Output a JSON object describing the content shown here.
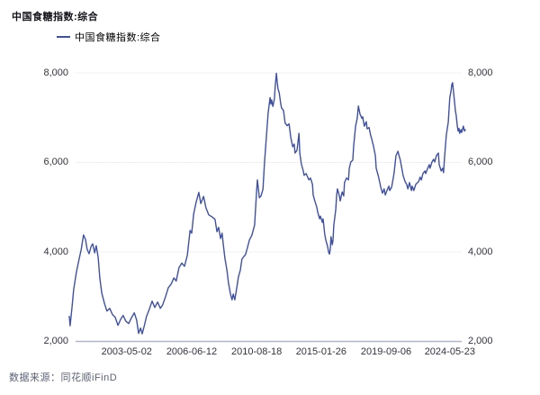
{
  "header": {
    "title": "中国食糖指数:综合"
  },
  "legend": {
    "label": "中国食糖指数:综合",
    "color": "#3f51a0"
  },
  "footer": {
    "source": "数据来源：同花顺iFinD"
  },
  "chart_data": {
    "type": "line",
    "title": "中国食糖指数:综合",
    "series_name": "中国食糖指数:综合",
    "line_color": "#3f51a0",
    "grid": "horizontal",
    "grid_color": "#eef0f6",
    "axis_color": "#b0b6cb",
    "ylim": [
      2000,
      8000
    ],
    "y_axis_sides": [
      "left",
      "right"
    ],
    "y_ticks": [
      {
        "label": "2,000",
        "value": 2000
      },
      {
        "label": "4,000",
        "value": 4000
      },
      {
        "label": "6,000",
        "value": 6000
      },
      {
        "label": "8,000",
        "value": 8000
      }
    ],
    "x_ticks": [
      {
        "label": "2003-05-02",
        "f": 0.145
      },
      {
        "label": "2006-06-12",
        "f": 0.309
      },
      {
        "label": "2010-08-18",
        "f": 0.473
      },
      {
        "label": "2015-01-26",
        "f": 0.636
      },
      {
        "label": "2019-09-06",
        "f": 0.8
      },
      {
        "label": "2024-05-23",
        "f": 0.961
      }
    ],
    "points": [
      [
        0.0,
        2560
      ],
      [
        0.002,
        2350
      ],
      [
        0.007,
        2780
      ],
      [
        0.011,
        3150
      ],
      [
        0.018,
        3550
      ],
      [
        0.025,
        3850
      ],
      [
        0.03,
        4050
      ],
      [
        0.036,
        4380
      ],
      [
        0.041,
        4280
      ],
      [
        0.045,
        4060
      ],
      [
        0.05,
        3960
      ],
      [
        0.055,
        4120
      ],
      [
        0.059,
        4180
      ],
      [
        0.064,
        3980
      ],
      [
        0.068,
        4140
      ],
      [
        0.073,
        3880
      ],
      [
        0.077,
        3420
      ],
      [
        0.082,
        3080
      ],
      [
        0.089,
        2840
      ],
      [
        0.095,
        2680
      ],
      [
        0.102,
        2740
      ],
      [
        0.109,
        2600
      ],
      [
        0.116,
        2540
      ],
      [
        0.123,
        2360
      ],
      [
        0.13,
        2500
      ],
      [
        0.136,
        2580
      ],
      [
        0.143,
        2450
      ],
      [
        0.15,
        2400
      ],
      [
        0.157,
        2530
      ],
      [
        0.164,
        2640
      ],
      [
        0.17,
        2480
      ],
      [
        0.175,
        2180
      ],
      [
        0.18,
        2300
      ],
      [
        0.184,
        2170
      ],
      [
        0.189,
        2340
      ],
      [
        0.195,
        2560
      ],
      [
        0.202,
        2720
      ],
      [
        0.209,
        2900
      ],
      [
        0.216,
        2760
      ],
      [
        0.223,
        2880
      ],
      [
        0.23,
        2740
      ],
      [
        0.236,
        2820
      ],
      [
        0.243,
        3000
      ],
      [
        0.25,
        3200
      ],
      [
        0.257,
        3280
      ],
      [
        0.264,
        3420
      ],
      [
        0.27,
        3350
      ],
      [
        0.277,
        3650
      ],
      [
        0.284,
        3750
      ],
      [
        0.291,
        3680
      ],
      [
        0.298,
        3920
      ],
      [
        0.305,
        4480
      ],
      [
        0.309,
        4420
      ],
      [
        0.314,
        4850
      ],
      [
        0.32,
        5100
      ],
      [
        0.327,
        5330
      ],
      [
        0.332,
        5080
      ],
      [
        0.339,
        5240
      ],
      [
        0.345,
        4990
      ],
      [
        0.352,
        4830
      ],
      [
        0.361,
        4780
      ],
      [
        0.368,
        4730
      ],
      [
        0.373,
        4450
      ],
      [
        0.377,
        4550
      ],
      [
        0.382,
        4300
      ],
      [
        0.386,
        4420
      ],
      [
        0.389,
        4150
      ],
      [
        0.393,
        3860
      ],
      [
        0.398,
        3600
      ],
      [
        0.402,
        3300
      ],
      [
        0.407,
        3060
      ],
      [
        0.411,
        2930
      ],
      [
        0.414,
        3060
      ],
      [
        0.418,
        2930
      ],
      [
        0.423,
        3200
      ],
      [
        0.427,
        3440
      ],
      [
        0.432,
        3600
      ],
      [
        0.436,
        3840
      ],
      [
        0.441,
        3900
      ],
      [
        0.445,
        3940
      ],
      [
        0.45,
        4100
      ],
      [
        0.455,
        4270
      ],
      [
        0.461,
        4370
      ],
      [
        0.468,
        4600
      ],
      [
        0.473,
        5350
      ],
      [
        0.475,
        5610
      ],
      [
        0.48,
        5210
      ],
      [
        0.484,
        5250
      ],
      [
        0.489,
        5400
      ],
      [
        0.493,
        6000
      ],
      [
        0.498,
        6600
      ],
      [
        0.502,
        7100
      ],
      [
        0.507,
        7450
      ],
      [
        0.509,
        7300
      ],
      [
        0.511,
        7400
      ],
      [
        0.514,
        7250
      ],
      [
        0.518,
        7420
      ],
      [
        0.52,
        7700
      ],
      [
        0.523,
        7990
      ],
      [
        0.525,
        7800
      ],
      [
        0.527,
        7640
      ],
      [
        0.53,
        7560
      ],
      [
        0.534,
        7300
      ],
      [
        0.536,
        7220
      ],
      [
        0.541,
        7160
      ],
      [
        0.545,
        6880
      ],
      [
        0.55,
        6820
      ],
      [
        0.555,
        6860
      ],
      [
        0.559,
        6570
      ],
      [
        0.564,
        6350
      ],
      [
        0.568,
        6410
      ],
      [
        0.57,
        6210
      ],
      [
        0.575,
        6270
      ],
      [
        0.58,
        6650
      ],
      [
        0.582,
        6210
      ],
      [
        0.586,
        5970
      ],
      [
        0.591,
        5810
      ],
      [
        0.593,
        5710
      ],
      [
        0.598,
        5750
      ],
      [
        0.605,
        5610
      ],
      [
        0.609,
        5650
      ],
      [
        0.614,
        5510
      ],
      [
        0.616,
        5270
      ],
      [
        0.62,
        5140
      ],
      [
        0.625,
        5000
      ],
      [
        0.627,
        4900
      ],
      [
        0.632,
        4740
      ],
      [
        0.634,
        4800
      ],
      [
        0.639,
        4660
      ],
      [
        0.641,
        4740
      ],
      [
        0.645,
        4400
      ],
      [
        0.648,
        4260
      ],
      [
        0.652,
        4130
      ],
      [
        0.655,
        3990
      ],
      [
        0.657,
        3950
      ],
      [
        0.659,
        4070
      ],
      [
        0.661,
        4340
      ],
      [
        0.664,
        4160
      ],
      [
        0.666,
        4260
      ],
      [
        0.668,
        4600
      ],
      [
        0.67,
        4740
      ],
      [
        0.673,
        4950
      ],
      [
        0.675,
        5250
      ],
      [
        0.677,
        5410
      ],
      [
        0.682,
        5250
      ],
      [
        0.684,
        5140
      ],
      [
        0.689,
        5340
      ],
      [
        0.693,
        5250
      ],
      [
        0.695,
        5550
      ],
      [
        0.7,
        5650
      ],
      [
        0.705,
        5610
      ],
      [
        0.707,
        5870
      ],
      [
        0.711,
        6010
      ],
      [
        0.716,
        6050
      ],
      [
        0.718,
        6350
      ],
      [
        0.723,
        6810
      ],
      [
        0.727,
        6980
      ],
      [
        0.73,
        7260
      ],
      [
        0.734,
        7080
      ],
      [
        0.739,
        6980
      ],
      [
        0.741,
        7020
      ],
      [
        0.745,
        6810
      ],
      [
        0.75,
        6910
      ],
      [
        0.752,
        6750
      ],
      [
        0.757,
        6780
      ],
      [
        0.761,
        6610
      ],
      [
        0.764,
        6510
      ],
      [
        0.768,
        6370
      ],
      [
        0.773,
        6150
      ],
      [
        0.775,
        5870
      ],
      [
        0.78,
        5710
      ],
      [
        0.784,
        5550
      ],
      [
        0.786,
        5470
      ],
      [
        0.791,
        5310
      ],
      [
        0.795,
        5410
      ],
      [
        0.798,
        5270
      ],
      [
        0.802,
        5370
      ],
      [
        0.807,
        5470
      ],
      [
        0.809,
        5370
      ],
      [
        0.814,
        5450
      ],
      [
        0.82,
        5750
      ],
      [
        0.825,
        6150
      ],
      [
        0.83,
        6250
      ],
      [
        0.832,
        6170
      ],
      [
        0.836,
        6050
      ],
      [
        0.841,
        5810
      ],
      [
        0.843,
        5710
      ],
      [
        0.848,
        5570
      ],
      [
        0.852,
        5510
      ],
      [
        0.855,
        5410
      ],
      [
        0.859,
        5550
      ],
      [
        0.864,
        5370
      ],
      [
        0.866,
        5470
      ],
      [
        0.87,
        5370
      ],
      [
        0.875,
        5510
      ],
      [
        0.882,
        5570
      ],
      [
        0.886,
        5670
      ],
      [
        0.889,
        5610
      ],
      [
        0.893,
        5750
      ],
      [
        0.898,
        5810
      ],
      [
        0.9,
        5750
      ],
      [
        0.905,
        5870
      ],
      [
        0.909,
        5950
      ],
      [
        0.911,
        5870
      ],
      [
        0.916,
        6010
      ],
      [
        0.92,
        6070
      ],
      [
        0.923,
        6010
      ],
      [
        0.927,
        6150
      ],
      [
        0.932,
        6210
      ],
      [
        0.934,
        5950
      ],
      [
        0.939,
        5810
      ],
      [
        0.943,
        5870
      ],
      [
        0.945,
        5770
      ],
      [
        0.948,
        6150
      ],
      [
        0.952,
        6610
      ],
      [
        0.957,
        6900
      ],
      [
        0.959,
        7200
      ],
      [
        0.961,
        7450
      ],
      [
        0.964,
        7600
      ],
      [
        0.966,
        7740
      ],
      [
        0.968,
        7780
      ],
      [
        0.97,
        7600
      ],
      [
        0.973,
        7340
      ],
      [
        0.975,
        7150
      ],
      [
        0.977,
        7050
      ],
      [
        0.98,
        6800
      ],
      [
        0.982,
        6700
      ],
      [
        0.984,
        6760
      ],
      [
        0.986,
        6650
      ],
      [
        0.989,
        6730
      ],
      [
        0.991,
        6670
      ],
      [
        0.995,
        6810
      ],
      [
        0.998,
        6700
      ],
      [
        1.0,
        6730
      ]
    ]
  }
}
